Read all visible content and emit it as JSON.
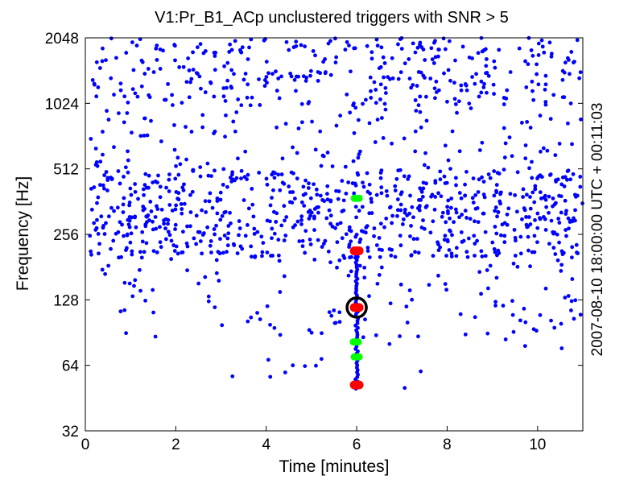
{
  "chart_data": {
    "type": "scatter",
    "title": "V1:Pr_B1_ACp unclustered triggers with SNR > 5",
    "xlabel": "Time [minutes]",
    "ylabel": "Frequency [Hz]",
    "side_label": "2007-08-10 18:00:00 UTC + 00:11:03",
    "xlim": [
      0,
      11
    ],
    "ylim": [
      32,
      2048
    ],
    "yscale": "log2",
    "grid": false,
    "x_ticks": [
      "0",
      "2",
      "4",
      "6",
      "8",
      "10"
    ],
    "y_ticks": [
      "32",
      "64",
      "128",
      "256",
      "512",
      "1024",
      "2048"
    ],
    "colors": {
      "background": "#ffffff",
      "axis": "#000000",
      "blue": "#0000ff",
      "green": "#00ff00",
      "red": "#ff0000",
      "circle": "#000000"
    },
    "background_triggers": {
      "color": "#0000ff",
      "bands": [
        {
          "f_min": 1000,
          "f_max": 2048,
          "count": 330
        },
        {
          "f_min": 512,
          "f_max": 1000,
          "count": 120
        },
        {
          "f_min": 330,
          "f_max": 512,
          "count": 330
        },
        {
          "f_min": 200,
          "f_max": 330,
          "count": 400
        },
        {
          "f_min": 80,
          "f_max": 200,
          "count": 120
        },
        {
          "f_min": 50,
          "f_max": 80,
          "count": 12
        }
      ]
    },
    "vertical_track": {
      "x": 6.0,
      "f_min": 50,
      "f_max": 215,
      "color": "#0000ff"
    },
    "series": [
      {
        "color": "#00ff00",
        "points": [
          {
            "x": 6.0,
            "y": 375
          },
          {
            "x": 5.98,
            "y": 82
          },
          {
            "x": 6.0,
            "y": 70
          }
        ]
      },
      {
        "color": "#ff0000",
        "points": [
          {
            "x": 6.0,
            "y": 215
          },
          {
            "x": 6.0,
            "y": 118
          },
          {
            "x": 6.0,
            "y": 52
          }
        ]
      }
    ],
    "highlight": {
      "x": 6.0,
      "y": 118
    }
  }
}
